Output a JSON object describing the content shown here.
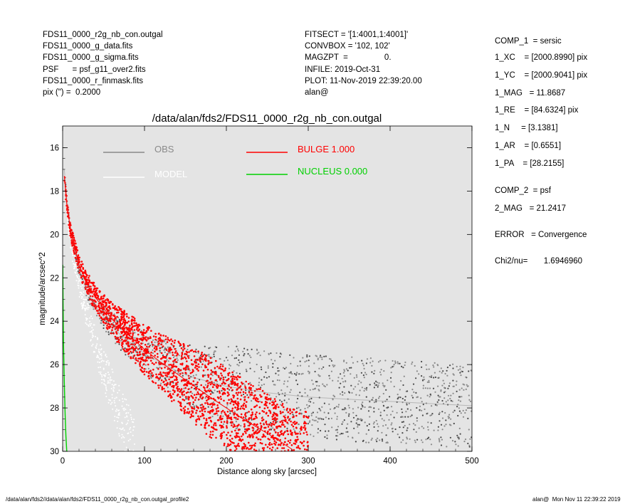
{
  "header_left": [
    "FDS11_0000_r2g_nb_con.outgal",
    "FDS11_0000_g_data.fits",
    "FDS11_0000_g_sigma.fits",
    "PSF      = psf_g11_over2.fits",
    "FDS11_0000_r_finmask.fits",
    "pix (\") =  0.2000"
  ],
  "header_mid": [
    "FITSECT = '[1:4001,1:4001]'",
    "CONVBOX = '102, 102'",
    "MAGZPT  =                0.",
    "INFILE: 2019-Oct-31",
    "PLOT: 11-Nov-2019 22:39:20.00",
    "alan@"
  ],
  "params": [
    "COMP_1  = sersic",
    "1_XC    = [2000.8990] pix",
    "1_YC    = [2000.9041] pix",
    "1_MAG   = 11.8687",
    "1_RE    = [84.6324] pix",
    "1_N     = [3.1381]",
    "1_AR    = [0.6551]",
    "1_PA    = [28.2155]",
    "COMP_2  = psf",
    "2_MAG   = 21.2417",
    "ERROR   = Convergence",
    "Chi2/nu=       1.6946960"
  ],
  "footer_left": "/data/alan/fds2//data/alan/fds2/FDS11_0000_r2g_nb_con.outgal_profile2",
  "footer_right": "alan@  Mon Nov 11 22:39:22 2019",
  "chart_data": {
    "type": "scatter",
    "title": "/data/alan/fds2/FDS11_0000_r2g_nb_con.outgal",
    "xlabel": "Distance along sky [arcsec]",
    "ylabel": "magnitude/arcsec^2",
    "xlim": [
      0,
      500
    ],
    "ylim": [
      30,
      15
    ],
    "y_inverted": true,
    "grid": false,
    "plot_background": "#e4e4e4",
    "x_ticks": [
      0,
      100,
      200,
      300,
      400,
      500
    ],
    "y_ticks": [
      16,
      18,
      20,
      22,
      24,
      26,
      28,
      30
    ],
    "legend": [
      {
        "label": "OBS",
        "color": "#8a8a8a"
      },
      {
        "label": "MODEL",
        "color": "#ffffff"
      },
      {
        "label": "BULGE  1.000",
        "color": "#ff0000"
      },
      {
        "label": "NUCLEUS  0.000",
        "color": "#00d000"
      }
    ],
    "series": [
      {
        "name": "OBS",
        "color": "#8a8a8a",
        "x": [
          2,
          5,
          10,
          20,
          30,
          40,
          50,
          60,
          70,
          80,
          90,
          100,
          120,
          140,
          160,
          180,
          200,
          250,
          300,
          350,
          400,
          450,
          500
        ],
        "y": [
          17.0,
          18.4,
          19.9,
          21.6,
          22.6,
          23.3,
          23.8,
          24.2,
          24.6,
          24.9,
          25.2,
          25.5,
          25.9,
          26.3,
          26.6,
          26.8,
          27.0,
          27.3,
          27.5,
          27.6,
          27.7,
          27.8,
          27.9
        ]
      },
      {
        "name": "MODEL",
        "color": "#ffffff",
        "x": [
          2,
          5,
          10,
          20,
          30,
          40,
          50,
          60,
          70,
          80,
          90
        ],
        "y": [
          17.2,
          18.9,
          20.4,
          22.3,
          23.7,
          25.0,
          26.2,
          27.2,
          28.2,
          29.1,
          29.9
        ]
      },
      {
        "name": "BULGE  1.000",
        "color": "#ff0000",
        "x": [
          2,
          5,
          10,
          20,
          30,
          40,
          60,
          80,
          100,
          120,
          150,
          180,
          220,
          260,
          280
        ],
        "y": [
          17.3,
          18.6,
          19.9,
          21.4,
          22.3,
          22.9,
          23.9,
          24.6,
          25.3,
          25.9,
          26.7,
          27.5,
          28.5,
          29.4,
          29.9
        ]
      },
      {
        "name": "NUCLEUS  0.000",
        "color": "#00d000",
        "x": [
          0.2,
          0.5,
          1,
          2,
          3,
          4,
          5
        ],
        "y": [
          21.4,
          23.2,
          25.0,
          26.8,
          28.3,
          29.3,
          30.0
        ]
      }
    ]
  }
}
